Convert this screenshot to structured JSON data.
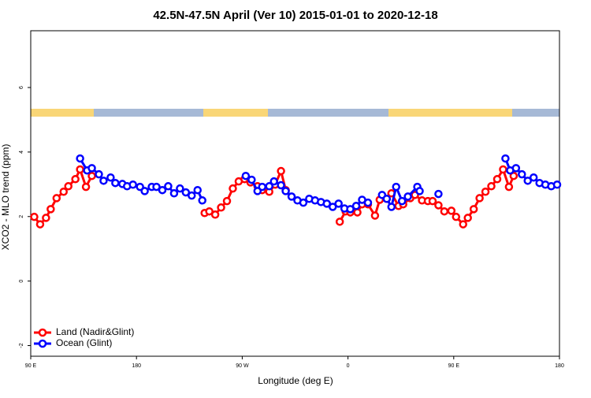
{
  "chart_data": {
    "type": "line",
    "title": "42.5N-47.5N April (Ver 10)   2015-01-01 to 2020-12-18",
    "x_label": "Longitude (deg E)",
    "y_label": "XCO2 - MLO trend (ppm)",
    "xlim": [
      90,
      540
    ],
    "xticks": [
      {
        "value": 90,
        "label": "90 E"
      },
      180,
      {
        "value": 270,
        "label": "90 W"
      },
      {
        "value": 360,
        "label": "0"
      },
      {
        "value": 450,
        "label": "90 E"
      },
      {
        "value": 540,
        "label": "180"
      }
    ],
    "ylim": [
      -2.33,
      7.76
    ],
    "yticks": [
      -2,
      0,
      2,
      4,
      6
    ],
    "legend": "bottom-left",
    "series": [
      {
        "name": "Land (Nadir&Glint)",
        "color": "#ff0000",
        "x": [
          93,
          98,
          103,
          107,
          112,
          118,
          122,
          128,
          132,
          137,
          142,
          null,
          238,
          242,
          247,
          252,
          257,
          262,
          267,
          272,
          277,
          283,
          287,
          293,
          298,
          303,
          307,
          null,
          353,
          358,
          362,
          368,
          372,
          377,
          383,
          387,
          393,
          397,
          403,
          407,
          413,
          417,
          423,
          428,
          432,
          437,
          442,
          448,
          452,
          458,
          462,
          467,
          472,
          477,
          482,
          487,
          492,
          497,
          501
        ],
        "values": [
          1.99,
          1.76,
          1.96,
          2.23,
          2.57,
          2.77,
          2.94,
          3.16,
          3.46,
          2.92,
          3.26,
          null,
          2.11,
          2.16,
          2.06,
          2.28,
          2.48,
          2.87,
          3.09,
          3.16,
          3.06,
          2.94,
          2.82,
          2.77,
          2.99,
          3.41,
          2.82,
          null,
          1.84,
          2.16,
          2.13,
          2.13,
          2.38,
          2.38,
          2.03,
          2.52,
          2.55,
          2.72,
          2.33,
          2.38,
          2.57,
          2.67,
          2.5,
          2.48,
          2.48,
          2.35,
          2.16,
          2.18,
          1.99,
          1.76,
          1.96,
          2.23,
          2.57,
          2.77,
          2.94,
          3.16,
          3.46,
          2.92,
          3.26
        ]
      },
      {
        "name": "Ocean (Glint)",
        "color": "#0000ff",
        "x": [
          132,
          138,
          142,
          148,
          152,
          158,
          162,
          168,
          172,
          177,
          183,
          187,
          193,
          197,
          202,
          207,
          212,
          217,
          222,
          227,
          232,
          236,
          null,
          273,
          278,
          283,
          287,
          293,
          297,
          303,
          307,
          312,
          317,
          322,
          327,
          332,
          337,
          342,
          347,
          352,
          357,
          362,
          367,
          372,
          377,
          null,
          389,
          393,
          397,
          401,
          406,
          411,
          419,
          421,
          null,
          437,
          null,
          494,
          498,
          503,
          508,
          513,
          518,
          523,
          528,
          533,
          538
        ],
        "values": [
          3.8,
          3.43,
          3.5,
          3.31,
          3.11,
          3.21,
          3.04,
          3.01,
          2.94,
          2.99,
          2.92,
          2.79,
          2.92,
          2.92,
          2.82,
          2.94,
          2.72,
          2.87,
          2.75,
          2.65,
          2.82,
          2.5,
          null,
          3.26,
          3.14,
          2.79,
          2.92,
          2.94,
          3.09,
          2.97,
          2.79,
          2.62,
          2.5,
          2.43,
          2.55,
          2.5,
          2.45,
          2.4,
          2.3,
          2.4,
          2.25,
          2.23,
          2.33,
          2.52,
          2.43,
          null,
          2.67,
          2.55,
          2.3,
          2.92,
          2.48,
          2.62,
          2.92,
          2.79,
          null,
          2.7,
          null,
          3.8,
          3.43,
          3.5,
          3.31,
          3.11,
          3.21,
          3.04,
          2.99,
          2.94,
          2.99
        ]
      }
    ]
  }
}
